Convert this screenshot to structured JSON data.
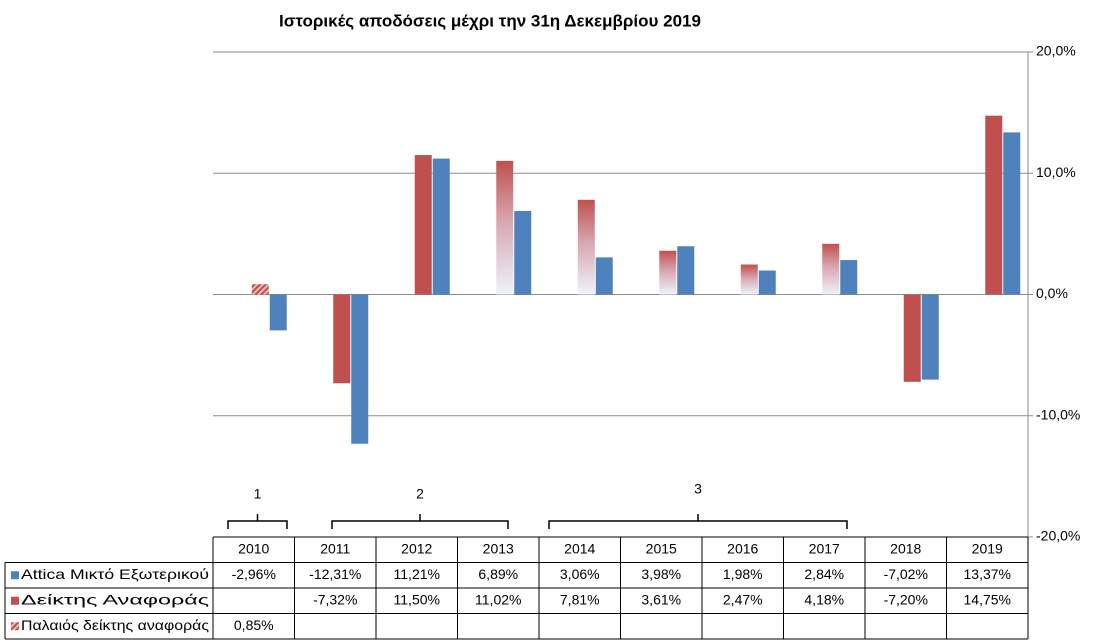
{
  "chart_data": {
    "type": "bar",
    "title": "Ιστορικές αποδόσεις μέχρι την 31η Δεκεμβρίου 2019",
    "categories": [
      "2010",
      "2011",
      "2012",
      "2013",
      "2014",
      "2015",
      "2016",
      "2017",
      "2018",
      "2019"
    ],
    "series": [
      {
        "name": "Attica Μικτό Εξωτερικού",
        "color": "#4f81bd",
        "values": [
          -2.96,
          -12.31,
          11.21,
          6.89,
          3.06,
          3.98,
          1.98,
          2.84,
          -7.02,
          13.37
        ],
        "value_labels": [
          "-2,96%",
          "-12,31%",
          "11,21%",
          "6,89%",
          "3,06%",
          "3,98%",
          "1,98%",
          "2,84%",
          "-7,02%",
          "13,37%"
        ]
      },
      {
        "name": "Δείκτης Αναφοράς",
        "color": "#c0504d",
        "values": [
          null,
          -7.32,
          11.5,
          11.02,
          7.81,
          3.61,
          2.47,
          4.18,
          -7.2,
          14.75
        ],
        "value_labels": [
          null,
          "-7,32%",
          "11,50%",
          "11,02%",
          "7,81%",
          "3,61%",
          "2,47%",
          "4,18%",
          "-7,20%",
          "14,75%"
        ]
      },
      {
        "name": "Παλαιός δείκτης αναφοράς",
        "color": "#d99694",
        "values": [
          0.85,
          null,
          null,
          null,
          null,
          null,
          null,
          null,
          null,
          null
        ],
        "value_labels": [
          "0,85%",
          null,
          null,
          null,
          null,
          null,
          null,
          null,
          null,
          null
        ]
      }
    ],
    "ylim": [
      -20,
      20
    ],
    "yticks": [
      {
        "value": -20,
        "label": "-20,0%"
      },
      {
        "value": -10,
        "label": "-10,0%"
      },
      {
        "value": 0,
        "label": "0,0%"
      },
      {
        "value": 10,
        "label": "10,0%"
      },
      {
        "value": 20,
        "label": "20,0%"
      }
    ],
    "grid": true,
    "annotations": [
      "1",
      "2",
      "3"
    ]
  }
}
